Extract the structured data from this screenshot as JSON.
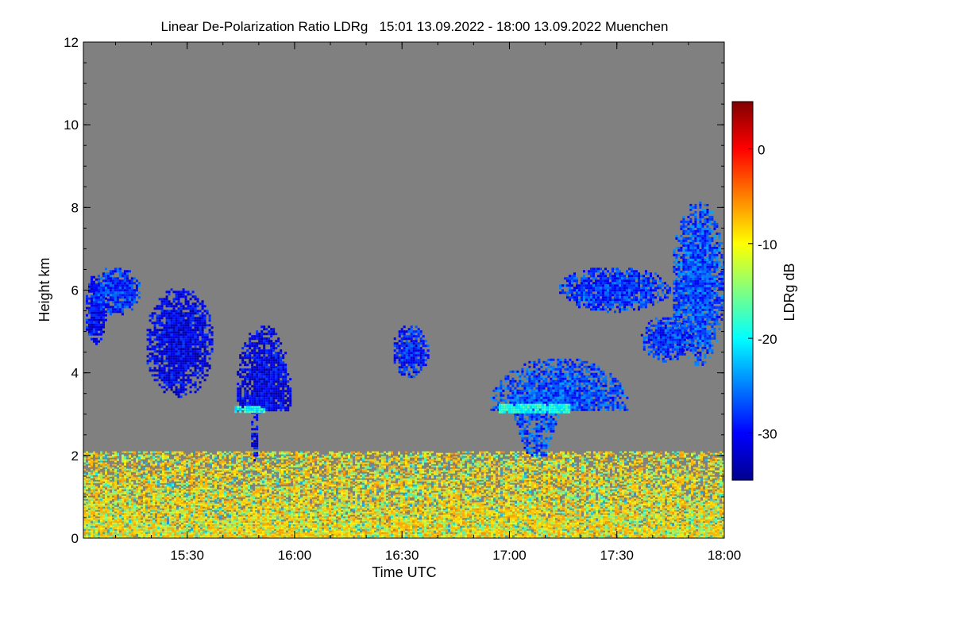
{
  "chart_data": {
    "type": "heatmap",
    "title": "Linear De-Polarization Ratio LDRg   15:01 13.09.2022 - 18:00 13.09.2022 Muenchen",
    "xlabel": "Time UTC",
    "ylabel": "Height km",
    "colorbar_label": "LDRg dB",
    "xlim_hours": [
      15.017,
      18.0
    ],
    "ylim_km": [
      0,
      12
    ],
    "colorbar_range": [
      -35,
      5
    ],
    "background_color": "#808080",
    "x_ticks": [
      {
        "value": 15.5,
        "label": "15:30"
      },
      {
        "value": 16.0,
        "label": "16:00"
      },
      {
        "value": 16.5,
        "label": "16:30"
      },
      {
        "value": 17.0,
        "label": "17:00"
      },
      {
        "value": 17.5,
        "label": "17:30"
      },
      {
        "value": 18.0,
        "label": "18:00"
      }
    ],
    "y_ticks": [
      {
        "value": 0,
        "label": "0"
      },
      {
        "value": 2,
        "label": "2"
      },
      {
        "value": 4,
        "label": "4"
      },
      {
        "value": 6,
        "label": "6"
      },
      {
        "value": 8,
        "label": "8"
      },
      {
        "value": 10,
        "label": "10"
      },
      {
        "value": 12,
        "label": "12"
      }
    ],
    "colorbar_ticks": [
      {
        "value": 0,
        "label": "0"
      },
      {
        "value": -10,
        "label": "-10"
      },
      {
        "value": -20,
        "label": "-20"
      },
      {
        "value": -30,
        "label": "-30"
      }
    ],
    "colormap": [
      "#00008f",
      "#0000ff",
      "#0080ff",
      "#00ffff",
      "#80ff80",
      "#ffff00",
      "#ff8000",
      "#ff0000",
      "#800000"
    ],
    "features": [
      {
        "name": "boundary-layer-noise",
        "t": [
          15.017,
          18.0
        ],
        "h": [
          0.0,
          2.1
        ],
        "ldr_db": -12
      },
      {
        "name": "cloud-early-edge",
        "t": [
          15.017,
          15.12
        ],
        "h": [
          4.7,
          6.4
        ],
        "ldr_db": -30
      },
      {
        "name": "cloud-thin-streak",
        "t": [
          15.05,
          15.28
        ],
        "h": [
          5.4,
          6.6
        ],
        "ldr_db": -28
      },
      {
        "name": "cloud-1530",
        "t": [
          15.3,
          15.62
        ],
        "h": [
          3.4,
          6.1
        ],
        "ldr_db": -31
      },
      {
        "name": "cloud-1555-with-fallstreak",
        "t": [
          15.72,
          15.98
        ],
        "h": [
          1.9,
          5.2
        ],
        "ldr_db": -31
      },
      {
        "name": "melting-layer-1555",
        "t": [
          15.72,
          15.86
        ],
        "h": [
          3.05,
          3.2
        ],
        "ldr_db": -20
      },
      {
        "name": "cloud-1630-patches",
        "t": [
          16.45,
          16.62
        ],
        "h": [
          3.9,
          5.2
        ],
        "ldr_db": -29
      },
      {
        "name": "cloud-1700-with-fallstreaks",
        "t": [
          16.9,
          17.55
        ],
        "h": [
          2.0,
          4.4
        ],
        "ldr_db": -27
      },
      {
        "name": "melting-layer-1700",
        "t": [
          16.95,
          17.28
        ],
        "h": [
          3.05,
          3.25
        ],
        "ldr_db": -19
      },
      {
        "name": "cloud-late-layer",
        "t": [
          17.22,
          17.75
        ],
        "h": [
          5.5,
          6.6
        ],
        "ldr_db": -28
      },
      {
        "name": "cloud-cirrus-late",
        "t": [
          17.75,
          18.0
        ],
        "h": [
          4.2,
          8.2
        ],
        "ldr_db": -27
      },
      {
        "name": "cloud-lower-late",
        "t": [
          17.6,
          17.85
        ],
        "h": [
          4.3,
          5.4
        ],
        "ldr_db": -28
      }
    ]
  }
}
